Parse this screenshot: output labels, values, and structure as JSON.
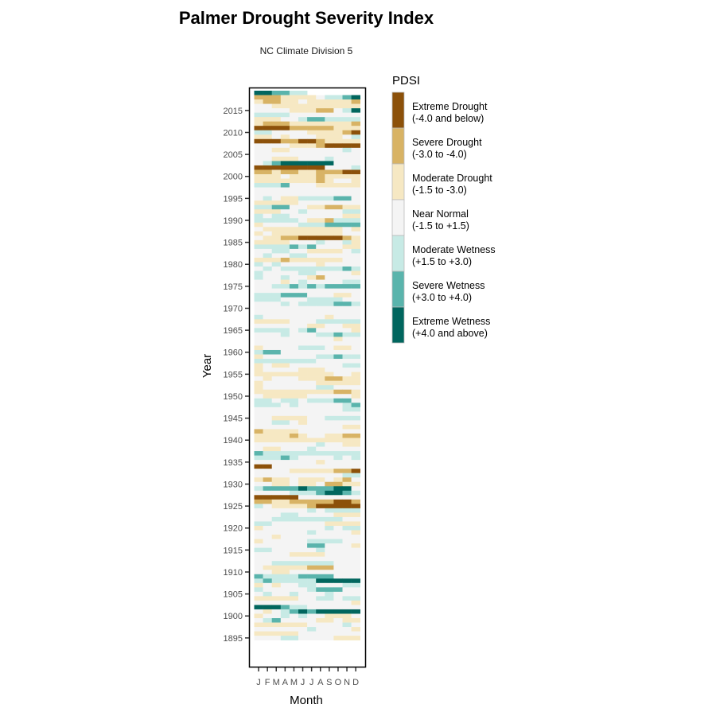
{
  "chart_data": {
    "type": "heatmap",
    "title": "Palmer Drought Severity Index",
    "subtitle": "NC Climate Division 5",
    "xlabel": "Month",
    "ylabel": "Year",
    "x_ticks": [
      "J",
      "F",
      "M",
      "A",
      "M",
      "J",
      "J",
      "A",
      "S",
      "O",
      "N",
      "D"
    ],
    "y_ticks": [
      1895,
      1900,
      1905,
      1910,
      1915,
      1920,
      1925,
      1930,
      1935,
      1940,
      1945,
      1950,
      1955,
      1960,
      1965,
      1970,
      1975,
      1980,
      1985,
      1990,
      1995,
      2000,
      2005,
      2010,
      2015
    ],
    "ylim": [
      1895,
      2019
    ],
    "grid": false,
    "legend": {
      "title": "PDSI",
      "placement": "right",
      "categories": [
        {
          "code": 0,
          "name": "Extreme Drought",
          "range": "(-4.0 and below)",
          "color": "#8c510a"
        },
        {
          "code": 1,
          "name": "Severe Drought",
          "range": "(-3.0 to -4.0)",
          "color": "#d8b365"
        },
        {
          "code": 2,
          "name": "Moderate Drought",
          "range": "(-1.5 to -3.0)",
          "color": "#f6e8c3"
        },
        {
          "code": 3,
          "name": "Near Normal",
          "range": "(-1.5 to +1.5)",
          "color": "#f4f4f4"
        },
        {
          "code": 4,
          "name": "Moderate Wetness",
          "range": "(+1.5 to +3.0)",
          "color": "#c7eae5"
        },
        {
          "code": 5,
          "name": "Severe Wetness",
          "range": "(+3.0 to +4.0)",
          "color": "#5ab4ac"
        },
        {
          "code": 6,
          "name": "Extreme Wetness",
          "range": "(+4.0 and above)",
          "color": "#01665e"
        }
      ]
    },
    "value_encoding": "one category code per month Jan-Dec; '-' = no data",
    "rows": [
      {
        "year": 2019,
        "months": "665544------"
      },
      {
        "year": 2018,
        "months": "111222234456"
      },
      {
        "year": 2017,
        "months": "211223222221"
      },
      {
        "year": 2016,
        "months": "332222222222"
      },
      {
        "year": 2015,
        "months": "333322211346"
      },
      {
        "year": 2014,
        "months": "444433333333"
      },
      {
        "year": 2013,
        "months": "222334554444"
      },
      {
        "year": 2012,
        "months": "211122222221"
      },
      {
        "year": 2011,
        "months": "000011111222"
      },
      {
        "year": 2010,
        "months": "443333222210"
      },
      {
        "year": 2009,
        "months": "223233322234"
      },
      {
        "year": 2008,
        "months": "000110012222"
      },
      {
        "year": 2007,
        "months": "333322210000"
      },
      {
        "year": 2006,
        "months": "332233333343"
      },
      {
        "year": 2005,
        "months": "333333333333"
      },
      {
        "year": 2004,
        "months": "332223334333"
      },
      {
        "year": 2003,
        "months": "345666666333"
      },
      {
        "year": 2002,
        "months": "000000003334"
      },
      {
        "year": 2001,
        "months": "112112211100"
      },
      {
        "year": 2000,
        "months": "222322212222"
      },
      {
        "year": 1999,
        "months": "222222212332"
      },
      {
        "year": 1998,
        "months": "444533322222"
      },
      {
        "year": 1997,
        "months": "333333333333"
      },
      {
        "year": 1996,
        "months": "333333333333"
      },
      {
        "year": 1995,
        "months": "343224444553"
      },
      {
        "year": 1994,
        "months": "222223333333"
      },
      {
        "year": 1993,
        "months": "445533221122"
      },
      {
        "year": 1992,
        "months": "222334333344"
      },
      {
        "year": 1991,
        "months": "434433333322"
      },
      {
        "year": 1990,
        "months": "444443221444"
      },
      {
        "year": 1989,
        "months": "233334445555"
      },
      {
        "year": 1988,
        "months": "322222222232"
      },
      {
        "year": 1987,
        "months": "232222222233"
      },
      {
        "year": 1986,
        "months": "322110000012"
      },
      {
        "year": 1985,
        "months": "222233343342"
      },
      {
        "year": 1984,
        "months": "444454533322"
      },
      {
        "year": 1983,
        "months": "334433222234"
      },
      {
        "year": 1982,
        "months": "343344333333"
      },
      {
        "year": 1981,
        "months": "222122222233"
      },
      {
        "year": 1980,
        "months": "434333323333"
      },
      {
        "year": 1979,
        "months": "343444444454"
      },
      {
        "year": 1978,
        "months": "433334433332"
      },
      {
        "year": 1977,
        "months": "433433213333"
      },
      {
        "year": 1976,
        "months": "333234333344"
      },
      {
        "year": 1975,
        "months": "334454545555"
      },
      {
        "year": 1974,
        "months": "333333333333"
      },
      {
        "year": 1973,
        "months": "444555333223"
      },
      {
        "year": 1972,
        "months": "444333444433"
      },
      {
        "year": 1971,
        "months": "333434444554"
      },
      {
        "year": 1970,
        "months": "333333333333"
      },
      {
        "year": 1969,
        "months": "333333333333"
      },
      {
        "year": 1968,
        "months": "433333332333"
      },
      {
        "year": 1967,
        "months": "222233344444"
      },
      {
        "year": 1966,
        "months": "333333223322"
      },
      {
        "year": 1965,
        "months": "444434533332"
      },
      {
        "year": 1964,
        "months": "333433344544"
      },
      {
        "year": 1963,
        "months": "333333333233"
      },
      {
        "year": 1962,
        "months": "333333333333"
      },
      {
        "year": 1961,
        "months": "233334443223"
      },
      {
        "year": 1960,
        "months": "455333333333"
      },
      {
        "year": 1959,
        "months": "233333344544"
      },
      {
        "year": 1958,
        "months": "444444433333"
      },
      {
        "year": 1957,
        "months": "232233333344"
      },
      {
        "year": 1956,
        "months": "233332223333"
      },
      {
        "year": 1955,
        "months": "222222222332"
      },
      {
        "year": 1954,
        "months": "323332221122"
      },
      {
        "year": 1953,
        "months": "233333322222"
      },
      {
        "year": 1952,
        "months": "233333344333"
      },
      {
        "year": 1951,
        "months": "222222222112"
      },
      {
        "year": 1950,
        "months": "322222333332"
      },
      {
        "year": 1949,
        "months": "443443444553"
      },
      {
        "year": 1948,
        "months": "444343333345"
      },
      {
        "year": 1947,
        "months": "333333333344"
      },
      {
        "year": 1946,
        "months": "333333333333"
      },
      {
        "year": 1945,
        "months": "332222334444"
      },
      {
        "year": 1944,
        "months": "334432333333"
      },
      {
        "year": 1943,
        "months": "333333333322"
      },
      {
        "year": 1942,
        "months": "122223333333"
      },
      {
        "year": 1941,
        "months": "222212332211"
      },
      {
        "year": 1940,
        "months": "222222222222"
      },
      {
        "year": 1939,
        "months": "333333343322"
      },
      {
        "year": 1938,
        "months": "322333433333"
      },
      {
        "year": 1937,
        "months": "544444444444"
      },
      {
        "year": 1936,
        "months": "444543333434"
      },
      {
        "year": 1935,
        "months": "333333323333"
      },
      {
        "year": 1934,
        "months": "003333333333"
      },
      {
        "year": 1933,
        "months": "333322222110"
      },
      {
        "year": 1932,
        "months": "333333333344"
      },
      {
        "year": 1931,
        "months": "212232223213"
      },
      {
        "year": 1930,
        "months": "332232231122"
      },
      {
        "year": 1929,
        "months": "455556555663"
      },
      {
        "year": 1928,
        "months": "333344456654"
      },
      {
        "year": 1927,
        "months": "000003333333"
      },
      {
        "year": 1926,
        "months": "112211111001"
      },
      {
        "year": 1925,
        "months": "432222100000"
      },
      {
        "year": 1924,
        "months": "333333434444"
      },
      {
        "year": 1923,
        "months": "333443333222"
      },
      {
        "year": 1922,
        "months": "334444444433"
      },
      {
        "year": 1921,
        "months": "443333332222"
      },
      {
        "year": 1920,
        "months": "233333334344"
      },
      {
        "year": 1919,
        "months": "333333433332"
      },
      {
        "year": 1918,
        "months": "332333333333"
      },
      {
        "year": 1917,
        "months": "233333444433"
      },
      {
        "year": 1916,
        "months": "333333553332"
      },
      {
        "year": 1915,
        "months": "443333343333"
      },
      {
        "year": 1914,
        "months": "333322223333"
      },
      {
        "year": 1913,
        "months": "333333333333"
      },
      {
        "year": 1912,
        "months": "334444444333"
      },
      {
        "year": 1911,
        "months": "322222111333"
      },
      {
        "year": 1910,
        "months": "332233333333"
      },
      {
        "year": 1909,
        "months": "544445555333"
      },
      {
        "year": 1908,
        "months": "454444466666"
      },
      {
        "year": 1907,
        "months": "232334433344"
      },
      {
        "year": 1906,
        "months": "433333455533"
      },
      {
        "year": 1905,
        "months": "343343334333"
      },
      {
        "year": 1904,
        "months": "222223344344"
      },
      {
        "year": 1903,
        "months": "333333333332"
      },
      {
        "year": 1902,
        "months": "666544333333"
      },
      {
        "year": 1901,
        "months": "323456566666"
      },
      {
        "year": 1900,
        "months": "233434332223"
      },
      {
        "year": 1899,
        "months": "345333322322"
      },
      {
        "year": 1898,
        "months": "222222333343"
      },
      {
        "year": 1897,
        "months": "333333433332"
      },
      {
        "year": 1896,
        "months": "222223333333"
      },
      {
        "year": 1895,
        "months": "333443333222"
      }
    ]
  }
}
